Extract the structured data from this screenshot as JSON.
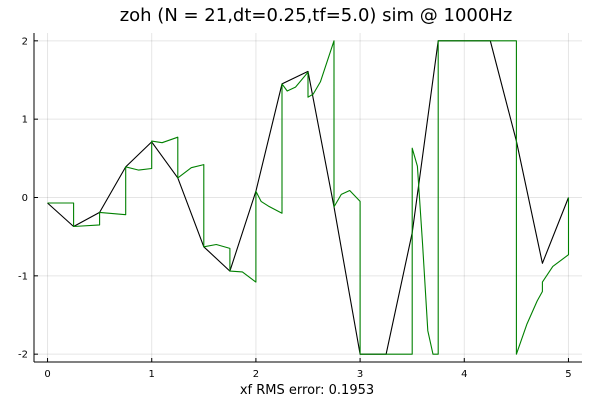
{
  "chart_data": {
    "type": "line",
    "title": "zoh (N = 21,dt=0.25,tf=5.0) sim @ 1000Hz",
    "xlabel": "xf RMS error: 0.1953",
    "ylabel": "",
    "xlim": [
      -0.13,
      5.13
    ],
    "ylim": [
      -2.1,
      2.1
    ],
    "xticks": [
      0,
      1,
      2,
      3,
      4,
      5
    ],
    "yticks": [
      2,
      1,
      0,
      -1,
      -2
    ],
    "grid": true,
    "legend": "none",
    "colors": {
      "reference": "#000000",
      "simulation": "#008000"
    },
    "series": [
      {
        "color": "#000000",
        "x": [
          0,
          0.25,
          0.5,
          0.75,
          1.0,
          1.25,
          1.5,
          1.75,
          2.0,
          2.25,
          2.5,
          2.75,
          3.0,
          3.25,
          3.5,
          3.75,
          4.0,
          4.25,
          4.5,
          4.75,
          5.0
        ],
        "y": [
          -0.07,
          -0.37,
          -0.19,
          0.39,
          0.71,
          0.25,
          -0.63,
          -0.94,
          0.08,
          1.45,
          1.61,
          -0.12,
          -2.0,
          -2.0,
          -0.45,
          2.0,
          2.0,
          2.0,
          0.72,
          -0.84,
          0.0
        ]
      },
      {
        "color": "#008000",
        "x": [
          0,
          0.25,
          0.25,
          0.5,
          0.5,
          0.75,
          0.75,
          0.875,
          1.0,
          1.0,
          1.1,
          1.25,
          1.25,
          1.38,
          1.5,
          1.5,
          1.62,
          1.75,
          1.75,
          1.87,
          2.0,
          2.0,
          2.05,
          2.12,
          2.25,
          2.25,
          2.3,
          2.38,
          2.5,
          2.5,
          2.55,
          2.62,
          2.75,
          2.75,
          2.82,
          2.9,
          3.0,
          3.0,
          3.25,
          3.25,
          3.5,
          3.5,
          3.55,
          3.6,
          3.65,
          3.7,
          3.75,
          3.75,
          3.76,
          3.76,
          4.0,
          4.25,
          4.5,
          4.5,
          4.6,
          4.7,
          4.75,
          4.75,
          4.85,
          5.0,
          5.0
        ],
        "y": [
          -0.07,
          -0.07,
          -0.37,
          -0.35,
          -0.19,
          -0.22,
          0.39,
          0.35,
          0.37,
          0.72,
          0.7,
          0.77,
          0.25,
          0.38,
          0.42,
          -0.63,
          -0.6,
          -0.65,
          -0.94,
          -0.95,
          -1.08,
          0.08,
          -0.05,
          -0.11,
          -0.2,
          1.45,
          1.36,
          1.41,
          1.6,
          1.28,
          1.32,
          1.48,
          2.0,
          -0.12,
          0.04,
          0.09,
          -0.05,
          -2.0,
          -2.0,
          -2.0,
          -2.0,
          0.63,
          0.4,
          -0.6,
          -1.7,
          -2.0,
          -2.0,
          2.0,
          2.0,
          2.0,
          2.0,
          2.0,
          2.0,
          -2.0,
          -1.62,
          -1.32,
          -1.2,
          -1.08,
          -0.88,
          -0.73,
          0.0
        ]
      }
    ]
  }
}
